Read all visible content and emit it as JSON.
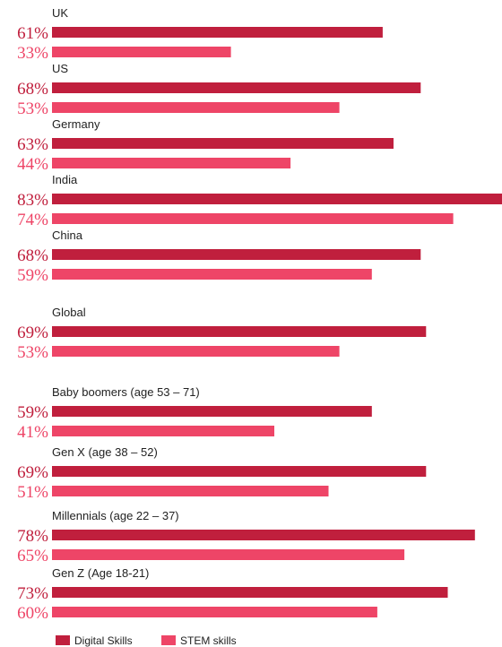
{
  "chart_data": {
    "type": "bar",
    "orientation": "horizontal",
    "categories": [
      "UK",
      "US",
      "Germany",
      "India",
      "China",
      "Global",
      "Baby boomers (age 53 – 71)",
      "Gen X (age 38 – 52)",
      "Millennials (age 22 – 37)",
      "Gen Z (Age 18-21)"
    ],
    "series": [
      {
        "name": "Digital Skills",
        "values": [
          61,
          68,
          63,
          83,
          68,
          69,
          59,
          69,
          78,
          73
        ],
        "color": "#c01f3d"
      },
      {
        "name": "STEM skills",
        "values": [
          33,
          53,
          44,
          74,
          59,
          53,
          41,
          51,
          65,
          60
        ],
        "color": "#ee4567"
      }
    ],
    "value_suffix": "%",
    "xlim": [
      0,
      83
    ],
    "legend_position": "bottom",
    "grid": false
  }
}
